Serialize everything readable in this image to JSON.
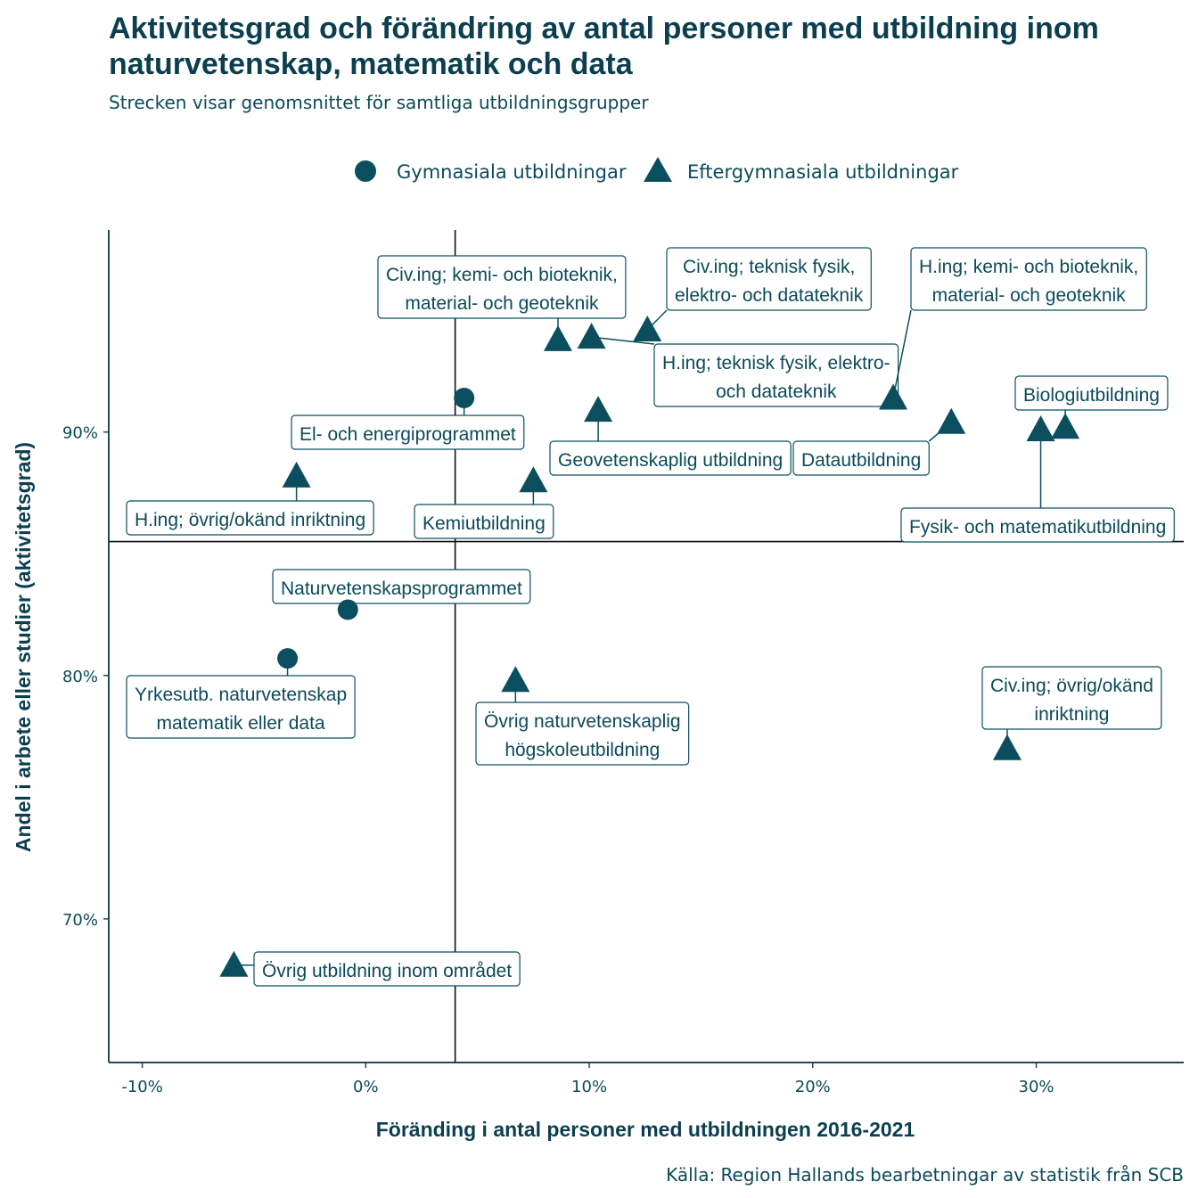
{
  "chart_data": {
    "type": "scatter",
    "title": "Aktivitetsgrad och förändring av antal personer med utbildning inom naturvetenskap, matematik och data",
    "title_lines": [
      "Aktivitetsgrad och förändring av antal personer med utbildning inom",
      "naturvetenskap, matematik och data"
    ],
    "subtitle": "Strecken visar genomsnittet för samtliga utbildningsgrupper",
    "xlabel": "Föränding i antal personer med utbildningen 2016-2021",
    "ylabel": "Andel i arbete eller studier (aktivitetsgrad)",
    "caption": "Källa: Region Hallands bearbetningar av statistik från SCB",
    "xlim": [
      -11.5,
      36.6
    ],
    "ylim": [
      64.1,
      98.3
    ],
    "x_ticks": [
      -10,
      0,
      10,
      20,
      30
    ],
    "x_tick_labels": [
      "-10%",
      "0%",
      "10%",
      "20%",
      "30%"
    ],
    "y_ticks": [
      70,
      80,
      90
    ],
    "y_tick_labels": [
      "70%",
      "80%",
      "90%"
    ],
    "reference_lines": {
      "x_mean": 4.0,
      "y_mean": 85.5
    },
    "grid": false,
    "legend_position": "top",
    "colors": {
      "marker": "#0b4f5f",
      "text": "#0b4a5a",
      "title": "#0b3f4f",
      "axis": "#1f4b55"
    },
    "series": [
      {
        "name": "Gymnasiala utbildningar",
        "shape": "circle",
        "points": [
          {
            "label": "El- och energiprogrammet",
            "x": 4.4,
            "y": 91.4
          },
          {
            "label": "Naturvetenskapsprogrammet",
            "x": -0.8,
            "y": 82.7
          },
          {
            "label": "Yrkesutb. naturvetenskap\nmatematik eller data",
            "x": -3.5,
            "y": 80.7
          }
        ]
      },
      {
        "name": "Eftergymnasiala utbildningar",
        "shape": "triangle",
        "points": [
          {
            "label": "Civ.ing; kemi- och bioteknik,\nmaterial- och geoteknik",
            "x": 8.6,
            "y": 93.8
          },
          {
            "label": "Civ.ing; teknisk fysik,\nelektro- och datateknik",
            "x": 12.6,
            "y": 94.2
          },
          {
            "label": "H.ing; teknisk fysik, elektro-\noch datateknik",
            "x": 10.1,
            "y": 93.9
          },
          {
            "label": "H.ing; kemi- och bioteknik,\nmaterial- och geoteknik",
            "x": 23.6,
            "y": 91.4
          },
          {
            "label": "Biologiutbildning",
            "x": 31.3,
            "y": 90.2
          },
          {
            "label": "Fysik- och matematikutbildning",
            "x": 30.2,
            "y": 90.1
          },
          {
            "label": "Datautbildning",
            "x": 26.2,
            "y": 90.4
          },
          {
            "label": "Geovetenskaplig utbildning",
            "x": 10.4,
            "y": 90.9
          },
          {
            "label": "H.ing; övrig/okänd inriktning",
            "x": -3.1,
            "y": 88.2
          },
          {
            "label": "Kemiutbildning",
            "x": 7.5,
            "y": 88.0
          },
          {
            "label": "Övrig naturvetenskaplig\nhögskoleutbildning",
            "x": 6.7,
            "y": 79.8
          },
          {
            "label": "Civ.ing; övrig/okänd\ninriktning",
            "x": 28.7,
            "y": 77.0
          },
          {
            "label": "Övrig utbildning inom området",
            "x": -5.9,
            "y": 68.1
          }
        ]
      }
    ]
  }
}
